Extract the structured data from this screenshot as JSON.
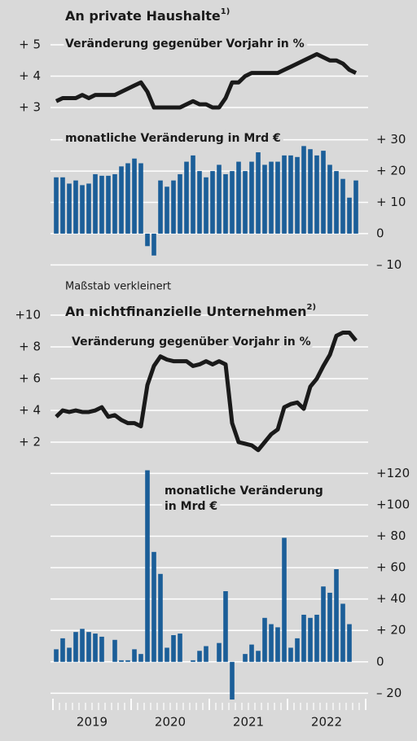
{
  "chart_data": [
    {
      "type": "line",
      "title": "An private Haushalte",
      "title_note": "1)",
      "subtitle": "Veränderung gegenüber Vorjahr in %",
      "y_axis_side": "left",
      "color": "#1a1a1a",
      "grid": true,
      "ylim": [
        2.6,
        5.4
      ],
      "yticks": [
        {
          "value": 3,
          "label": "+ 3"
        },
        {
          "value": 4,
          "label": "+ 4"
        },
        {
          "value": 5,
          "label": "+ 5"
        }
      ],
      "values": [
        3.2,
        3.3,
        3.3,
        3.3,
        3.4,
        3.3,
        3.4,
        3.4,
        3.4,
        3.4,
        3.5,
        3.6,
        3.7,
        3.8,
        3.5,
        3.0,
        3.0,
        3.0,
        3.0,
        3.0,
        3.1,
        3.2,
        3.1,
        3.1,
        3.0,
        3.0,
        3.3,
        3.8,
        3.8,
        4.0,
        4.1,
        4.1,
        4.1,
        4.1,
        4.1,
        4.2,
        4.3,
        4.4,
        4.5,
        4.6,
        4.7,
        4.6,
        4.5,
        4.5,
        4.4,
        4.2,
        4.1
      ]
    },
    {
      "type": "bar",
      "subtitle": "monatliche Veränderung in Mrd €",
      "y_axis_side": "right",
      "color": "#1b5e98",
      "grid": true,
      "ylim": [
        -12,
        32
      ],
      "yticks": [
        {
          "value": -10,
          "label": "– 10"
        },
        0,
        {
          "value": 10,
          "label": "+ 10"
        },
        {
          "value": 20,
          "label": "+ 20"
        },
        {
          "value": 30,
          "label": "+ 30"
        }
      ],
      "values": [
        18,
        18,
        16,
        17,
        15.5,
        16,
        19,
        18.5,
        18.5,
        19,
        21.5,
        22.5,
        24,
        22.5,
        -4,
        -7,
        17,
        15,
        17,
        19,
        23,
        25,
        20,
        18,
        20,
        22,
        19,
        20,
        23,
        20,
        23,
        26,
        22,
        23,
        23,
        25,
        25,
        24.5,
        28,
        27,
        25,
        26.5,
        22,
        20,
        17.5,
        11.5,
        17
      ]
    },
    {
      "type": "line",
      "annotation": "Maßstab verkleinert",
      "title": "An nichtfinanzielle Unternehmen",
      "title_note": "2)",
      "subtitle": "Veränderung gegenüber Vorjahr in %",
      "y_axis_side": "left",
      "color": "#1a1a1a",
      "grid": true,
      "ylim": [
        1,
        10.5
      ],
      "yticks": [
        {
          "value": 2,
          "label": "+ 2"
        },
        {
          "value": 4,
          "label": "+ 4"
        },
        {
          "value": 6,
          "label": "+ 6"
        },
        {
          "value": 8,
          "label": "+ 8"
        },
        {
          "value": 10,
          "label": "+10"
        }
      ],
      "values": [
        3.6,
        4.0,
        3.9,
        4.0,
        3.9,
        3.9,
        4.0,
        4.2,
        3.6,
        3.7,
        3.4,
        3.2,
        3.2,
        3.0,
        5.6,
        6.8,
        7.4,
        7.2,
        7.1,
        7.1,
        7.1,
        6.8,
        6.9,
        7.1,
        6.9,
        7.1,
        6.9,
        3.2,
        2.0,
        1.9,
        1.8,
        1.5,
        2.0,
        2.5,
        2.8,
        4.2,
        4.4,
        4.5,
        4.1,
        5.5,
        6.0,
        6.8,
        7.5,
        8.7,
        8.9,
        8.9,
        8.4
      ]
    },
    {
      "type": "bar",
      "subtitle_lines": [
        "monatliche Veränderung",
        "in Mrd €"
      ],
      "y_axis_side": "right",
      "color": "#1b5e98",
      "grid": true,
      "ylim": [
        -25,
        125
      ],
      "yticks": [
        {
          "value": -20,
          "label": "– 20"
        },
        0,
        {
          "value": 20,
          "label": "+ 20"
        },
        {
          "value": 40,
          "label": "+ 40"
        },
        {
          "value": 60,
          "label": "+ 60"
        },
        {
          "value": 80,
          "label": "+ 80"
        },
        {
          "value": 100,
          "label": "+100"
        },
        {
          "value": 120,
          "label": "+120"
        }
      ],
      "values": [
        8,
        15,
        9,
        19,
        21,
        19,
        18,
        16,
        0,
        14,
        1,
        1,
        8,
        5,
        122,
        70,
        56,
        9,
        17,
        18,
        0,
        1,
        7,
        10,
        0,
        12,
        45,
        -24,
        0,
        5,
        11,
        7,
        28,
        24,
        22,
        79,
        9,
        15,
        30,
        28,
        30,
        48,
        44,
        59,
        37,
        24,
        null
      ]
    }
  ],
  "x_labels": [
    "2019",
    "2020",
    "2021",
    "2022"
  ]
}
